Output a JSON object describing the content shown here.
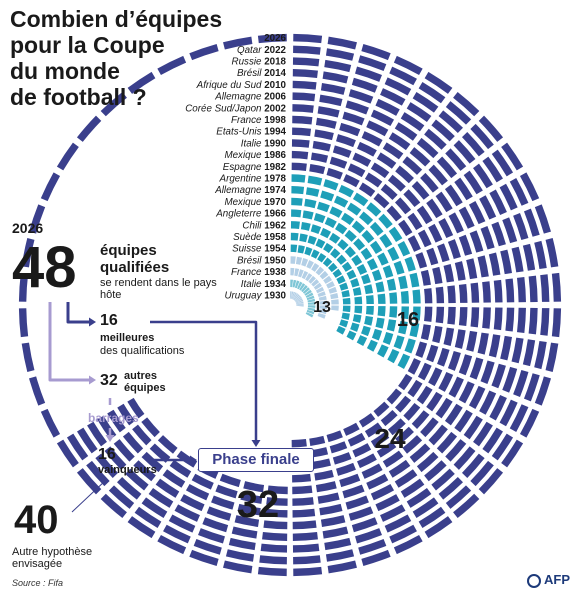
{
  "title_lines": [
    "Combien d’équipes",
    "pour la Coupe",
    "du monde",
    "de football ?"
  ],
  "colors": {
    "dark": "#3a3f8c",
    "teal": "#1e9fb8",
    "light_teal": "#7fc6d6",
    "pale": "#b3cfe6",
    "lavender": "#a79bd0",
    "text": "#1a1a1a"
  },
  "chart_data": {
    "type": "radial bar",
    "editions": [
      {
        "label": "2026",
        "year": 2026,
        "teams": 48
      },
      {
        "label": "Qatar",
        "year": 2022,
        "teams": 32
      },
      {
        "label": "Russie",
        "year": 2018,
        "teams": 32
      },
      {
        "label": "Brésil",
        "year": 2014,
        "teams": 32
      },
      {
        "label": "Afrique du Sud",
        "year": 2010,
        "teams": 32
      },
      {
        "label": "Allemagne",
        "year": 2006,
        "teams": 32
      },
      {
        "label": "Corée Sud/Japon",
        "year": 2002,
        "teams": 32
      },
      {
        "label": "France",
        "year": 1998,
        "teams": 32
      },
      {
        "label": "Etats-Unis",
        "year": 1994,
        "teams": 24
      },
      {
        "label": "Italie",
        "year": 1990,
        "teams": 24
      },
      {
        "label": "Mexique",
        "year": 1986,
        "teams": 24
      },
      {
        "label": "Espagne",
        "year": 1982,
        "teams": 24
      },
      {
        "label": "Argentine",
        "year": 1978,
        "teams": 16
      },
      {
        "label": "Allemagne",
        "year": 1974,
        "teams": 16
      },
      {
        "label": "Mexique",
        "year": 1970,
        "teams": 16
      },
      {
        "label": "Angleterre",
        "year": 1966,
        "teams": 16
      },
      {
        "label": "Chili",
        "year": 1962,
        "teams": 16
      },
      {
        "label": "Suède",
        "year": 1958,
        "teams": 16
      },
      {
        "label": "Suisse",
        "year": 1954,
        "teams": 16
      },
      {
        "label": "Brésil",
        "year": 1950,
        "teams": 13
      },
      {
        "label": "France",
        "year": 1938,
        "teams": 15
      },
      {
        "label": "Italie",
        "year": 1934,
        "teams": 16
      },
      {
        "label": "Uruguay",
        "year": 1930,
        "teams": 13
      }
    ],
    "level_labels": [
      "13",
      "16",
      "24",
      "32"
    ]
  },
  "format_2026": {
    "year": "2026",
    "total": "48",
    "qualified_heading": "équipes qualifiées",
    "host_note": "se rendent dans le pays hôte",
    "best_count": "16",
    "best_label": "meilleures",
    "best_sub": "des qualifications",
    "others_count": "32",
    "others_label": "autres équipes",
    "playoffs": "barrages",
    "winners_count": "16",
    "winners_label": "vainqueurs",
    "final_phase": "Phase finale",
    "alt_count": "40",
    "alt_label": "Autre hypothèse envisagée"
  },
  "source": "Source : Fifa",
  "logo": "AFP"
}
